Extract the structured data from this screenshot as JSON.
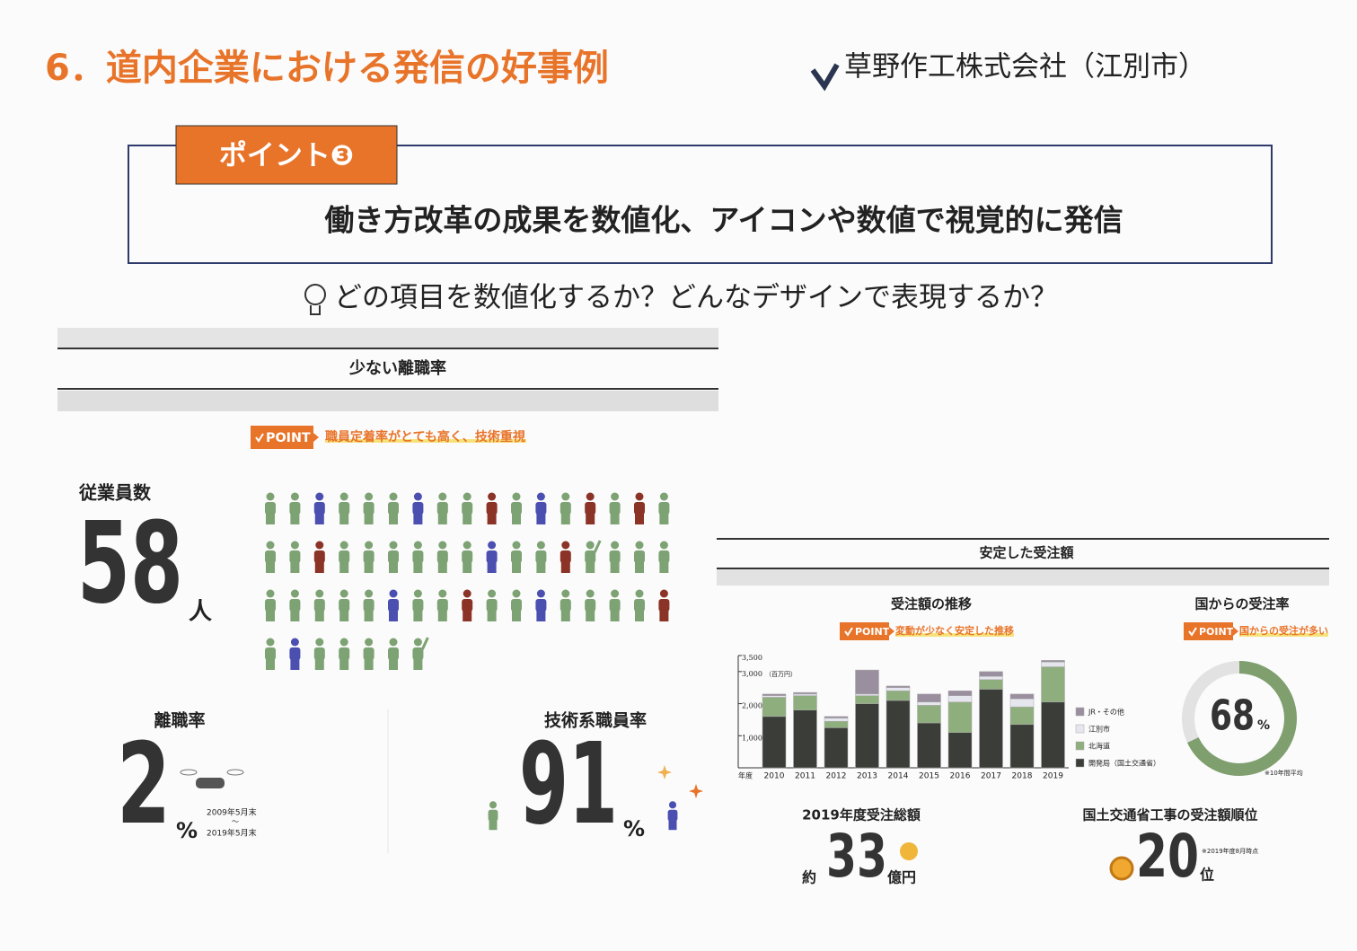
{
  "header": {
    "title": "6．道内企業における発信の好事例",
    "company": "草野作工株式会社（江別市）"
  },
  "point": {
    "badge": "ポイント❸",
    "text": "働き方改革の成果を数値化、アイコンや数値で視覚的に発信"
  },
  "question": "どの項目を数値化するか？どんなデザインで表現するか？",
  "left": {
    "title": "少ない離職率",
    "point_tag": "POINT",
    "point_text": "職員定着率がとても高く、技術重視",
    "employees": {
      "label": "従業員数",
      "count": 58,
      "unit": "人"
    },
    "turnover": {
      "label": "離職率",
      "value": 2,
      "unit": "%",
      "period_from": "2009年5月末",
      "range_separator": "〜",
      "period_to": "2019年5月末"
    },
    "engineers": {
      "label": "技術系職員率",
      "value": 91,
      "unit": "%"
    }
  },
  "right": {
    "title": "安定した受注額",
    "total": {
      "label": "2019年度受注総額",
      "prefix": "約",
      "value": 33,
      "unit": "億円"
    },
    "rank": {
      "label": "国土交通省工事の受注額順位",
      "value": 20,
      "unit": "位",
      "note": "※2019年度8月時点"
    }
  },
  "chart_data": [
    {
      "type": "bar",
      "stacked": true,
      "title": "受注額の推移",
      "point_tag": "POINT",
      "point_text": "変動が少なく安定した推移",
      "x_label": "年度",
      "y_unit": "（百万円）",
      "categories": [
        "2010",
        "2011",
        "2012",
        "2013",
        "2014",
        "2015",
        "2016",
        "2017",
        "2018",
        "2019"
      ],
      "series": [
        {
          "name": "開発局（国土交通省）",
          "color": "#3a3d38",
          "values": [
            1600,
            1800,
            1250,
            2000,
            2100,
            1400,
            1100,
            2450,
            1350,
            2050
          ]
        },
        {
          "name": "北海道",
          "color": "#8fae7e",
          "values": [
            600,
            450,
            200,
            250,
            300,
            550,
            950,
            300,
            550,
            1100
          ]
        },
        {
          "name": "江別市",
          "color": "#e6e6ee",
          "values": [
            50,
            50,
            100,
            50,
            100,
            100,
            200,
            100,
            250,
            150
          ]
        },
        {
          "name": "JR・その他",
          "color": "#9a8f9e",
          "values": [
            50,
            50,
            50,
            750,
            50,
            250,
            150,
            150,
            150,
            50
          ]
        }
      ],
      "ylim": [
        0,
        3500
      ],
      "yticks": [
        {
          "value": 1000,
          "label": "1,000"
        },
        {
          "value": 2000,
          "label": "2,000"
        },
        {
          "value": 3000,
          "label": "3,000"
        },
        {
          "value": 3500,
          "label": "3,500"
        }
      ]
    },
    {
      "type": "donut",
      "title": "国からの受注率",
      "point_tag": "POINT",
      "point_text": "国からの受注が多い",
      "values": [
        68
      ],
      "unit": "%",
      "color": "#7f9f6f",
      "note": "※10年間平均"
    }
  ]
}
